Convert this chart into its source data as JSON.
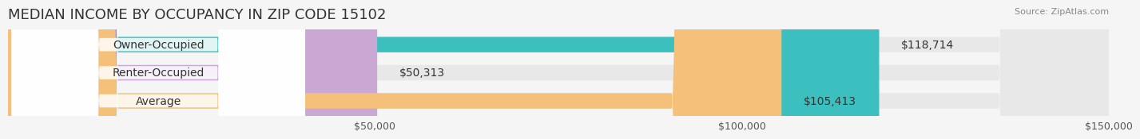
{
  "title": "MEDIAN INCOME BY OCCUPANCY IN ZIP CODE 15102",
  "source": "Source: ZipAtlas.com",
  "categories": [
    "Owner-Occupied",
    "Renter-Occupied",
    "Average"
  ],
  "values": [
    118714,
    50313,
    105413
  ],
  "bar_colors": [
    "#3bbfbf",
    "#c9a8d4",
    "#f5c07a"
  ],
  "bar_bg_color": "#e8e8e8",
  "value_labels": [
    "$118,714",
    "$50,313",
    "$105,413"
  ],
  "xlim": [
    0,
    150000
  ],
  "xticks": [
    0,
    50000,
    100000,
    150000
  ],
  "xtick_labels": [
    "$50,000",
    "$100,000",
    "$150,000"
  ],
  "background_color": "#f5f5f5",
  "bar_height": 0.55,
  "title_fontsize": 13,
  "label_fontsize": 10,
  "tick_fontsize": 9
}
